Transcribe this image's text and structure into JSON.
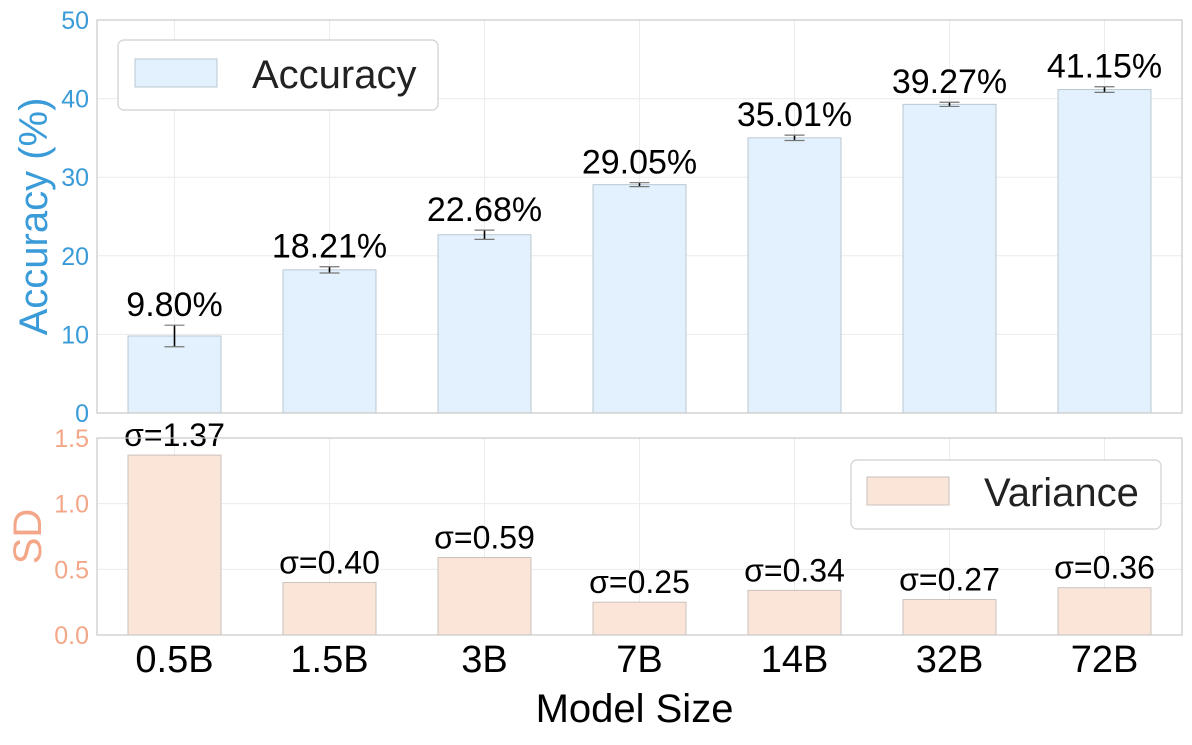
{
  "colors": {
    "accuracy_axis": "#3a9bd9",
    "sd_axis": "#f4a788",
    "accuracy_bar_fill": "#e2f1fd",
    "accuracy_bar_stroke": "#b9c7d3",
    "variance_bar_fill": "#fbe5d9",
    "variance_bar_stroke": "#c9c2bd",
    "grid": "#ececec",
    "frame": "#c8c8c8",
    "text": "#000000"
  },
  "chart_data": [
    {
      "type": "bar",
      "panel": "top",
      "categories": [
        "0.5B",
        "1.5B",
        "3B",
        "7B",
        "14B",
        "32B",
        "72B"
      ],
      "values": [
        9.8,
        18.21,
        22.68,
        29.05,
        35.01,
        39.27,
        41.15
      ],
      "error_bars": [
        1.37,
        0.4,
        0.59,
        0.25,
        0.34,
        0.27,
        0.36
      ],
      "data_labels": [
        "9.80%",
        "18.21%",
        "22.68%",
        "29.05%",
        "35.01%",
        "39.27%",
        "41.15%"
      ],
      "ylabel": "Accuracy (%)",
      "ylim": [
        0,
        50
      ],
      "yticks": [
        0,
        10,
        20,
        30,
        40,
        50
      ],
      "ytick_labels": [
        "0",
        "10",
        "20",
        "30",
        "40",
        "50"
      ],
      "legend": {
        "label": "Accuracy",
        "placement": "top-left"
      },
      "grid": true
    },
    {
      "type": "bar",
      "panel": "bottom",
      "categories": [
        "0.5B",
        "1.5B",
        "3B",
        "7B",
        "14B",
        "32B",
        "72B"
      ],
      "values": [
        1.37,
        0.4,
        0.59,
        0.25,
        0.34,
        0.27,
        0.36
      ],
      "data_labels": [
        "σ=1.37",
        "σ=0.40",
        "σ=0.59",
        "σ=0.25",
        "σ=0.34",
        "σ=0.27",
        "σ=0.36"
      ],
      "ylabel": "SD",
      "xlabel": "Model Size",
      "ylim": [
        0,
        1.5
      ],
      "yticks": [
        0,
        0.5,
        1.0,
        1.5
      ],
      "ytick_labels": [
        "0.0",
        "0.5",
        "1.0",
        "1.5"
      ],
      "legend": {
        "label": "Variance",
        "placement": "top-right"
      },
      "grid": true
    }
  ]
}
